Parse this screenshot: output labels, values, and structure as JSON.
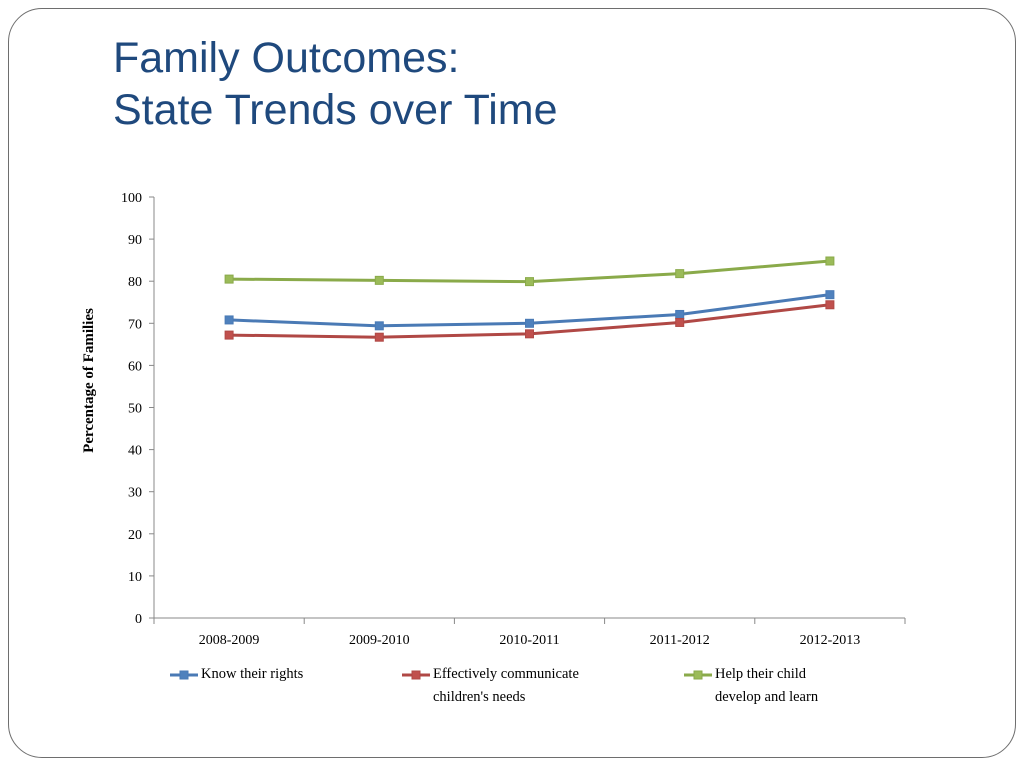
{
  "slide": {
    "title_line1": "Family Outcomes:",
    "title_line2": "State Trends over Time"
  },
  "chart_data": {
    "type": "line",
    "title": "",
    "xlabel": "",
    "ylabel": "Percentage of Families",
    "ylim": [
      0,
      100
    ],
    "yticks": [
      0,
      10,
      20,
      30,
      40,
      50,
      60,
      70,
      80,
      90,
      100
    ],
    "categories": [
      "2008-2009",
      "2009-2010",
      "2010-2011",
      "2011-2012",
      "2012-2013"
    ],
    "grid": false,
    "legend_position": "bottom",
    "series": [
      {
        "name": "Know their rights",
        "legend_lines": [
          "Know their rights"
        ],
        "color": "#4a7ab5",
        "marker_color": "#4f81bd",
        "values": [
          70.8,
          69.4,
          70.0,
          72.1,
          76.8
        ]
      },
      {
        "name": "Effectively communicate children's needs",
        "legend_lines": [
          "Effectively communicate",
          "children's needs"
        ],
        "color": "#b04845",
        "marker_color": "#c0504d",
        "values": [
          67.2,
          66.7,
          67.5,
          70.2,
          74.4
        ]
      },
      {
        "name": "Help their child develop and learn",
        "legend_lines": [
          "Help their child",
          "develop and learn"
        ],
        "color": "#8aaa4a",
        "marker_color": "#9bbb59",
        "values": [
          80.5,
          80.2,
          79.9,
          81.8,
          84.8
        ]
      }
    ]
  }
}
